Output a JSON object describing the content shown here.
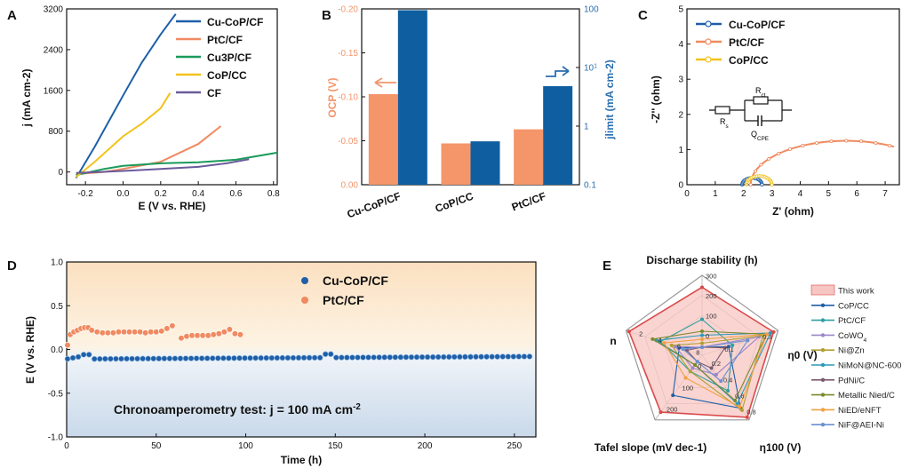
{
  "colors": {
    "cucop": "#1f5fa8",
    "ptc": "#f08a60",
    "cu3p": "#1a9a5a",
    "cop": "#f3c21a",
    "cf": "#6a5b9a",
    "barOrange": "#f4956a",
    "barBlue": "#0f5fa0",
    "orangeAxis": "#f4956a",
    "blueAxis": "#2a6fb0",
    "radarFill": "#f7c5c2",
    "radarStroke": "#d94a4a"
  },
  "chart_data": [
    {
      "panel": "A",
      "type": "line",
      "xlabel": "E (V vs. RHE)",
      "ylabel": "j (mA cm-2)",
      "xlim": [
        -0.3,
        0.82
      ],
      "ylim": [
        -250,
        3200
      ],
      "xticks": [
        "-0.2",
        "0.0",
        "0.2",
        "0.4",
        "0.6",
        "0.8"
      ],
      "xtickValues": [
        -0.2,
        0.0,
        0.2,
        0.4,
        0.6,
        0.8
      ],
      "yticks": [
        "0",
        "800",
        "1600",
        "2400",
        "3200"
      ],
      "ytickValues": [
        0,
        800,
        1600,
        2400,
        3200
      ],
      "legend": [
        "Cu-CoP/CF",
        "PtC/CF",
        "Cu3P/CF",
        "CoP/CC",
        "CF"
      ],
      "series": [
        {
          "name": "Cu-CoP/CF",
          "color": "cucop",
          "x": [
            -0.25,
            -0.15,
            0.0,
            0.1,
            0.2,
            0.28
          ],
          "y": [
            -120,
            500,
            1500,
            2150,
            2700,
            3100
          ]
        },
        {
          "name": "PtC/CF",
          "color": "ptc",
          "x": [
            -0.25,
            -0.1,
            0.0,
            0.2,
            0.4,
            0.52
          ],
          "y": [
            -40,
            0,
            60,
            200,
            550,
            900
          ]
        },
        {
          "name": "Cu3P/CF",
          "color": "cu3p",
          "x": [
            -0.25,
            -0.1,
            0.0,
            0.2,
            0.4,
            0.6,
            0.82
          ],
          "y": [
            -60,
            60,
            120,
            170,
            190,
            240,
            380
          ]
        },
        {
          "name": "CoP/CC",
          "color": "cop",
          "x": [
            -0.25,
            -0.15,
            0.0,
            0.1,
            0.2,
            0.25
          ],
          "y": [
            -100,
            200,
            700,
            950,
            1250,
            1550
          ]
        },
        {
          "name": "CF",
          "color": "cf",
          "x": [
            -0.25,
            0.0,
            0.2,
            0.4,
            0.55,
            0.67
          ],
          "y": [
            -20,
            20,
            60,
            100,
            170,
            250
          ]
        }
      ]
    },
    {
      "panel": "B",
      "type": "bar",
      "categories": [
        "Cu-CoP/CF",
        "CoP/CC",
        "PtC/CF"
      ],
      "ylabelLeft": "OCP (V)",
      "ylabelRight": "jlimit (mA cm-2)",
      "ylimLeft": [
        0,
        -0.2
      ],
      "yticksLeft": [
        "0.00",
        "-0.05",
        "-0.10",
        "-0.15",
        "-0.20"
      ],
      "ytickValuesLeft": [
        0,
        -0.05,
        -0.1,
        -0.15,
        -0.2
      ],
      "ylimRight": [
        0.1,
        100
      ],
      "yticksRight": [
        "0.1",
        "1",
        "10",
        "100"
      ],
      "ytickValuesRight": [
        0.1,
        1,
        10,
        100
      ],
      "series": [
        {
          "name": "OCP",
          "axis": "left",
          "color": "barOrange",
          "values": [
            -0.103,
            -0.047,
            -0.063
          ]
        },
        {
          "name": "jlimit",
          "axis": "right",
          "color": "barBlue",
          "values": [
            95,
            0.55,
            4.8
          ]
        }
      ]
    },
    {
      "panel": "C",
      "type": "line",
      "xlabel": "Z' (ohm)",
      "ylabel": "-Z'' (ohm)",
      "xlim": [
        0,
        7.5
      ],
      "ylim": [
        0,
        5
      ],
      "xticks": [
        "0",
        "1",
        "2",
        "3",
        "4",
        "5",
        "6",
        "7"
      ],
      "xtickValues": [
        0,
        1,
        2,
        3,
        4,
        5,
        6,
        7
      ],
      "yticks": [
        "0",
        "1",
        "2",
        "3",
        "4",
        "5"
      ],
      "ytickValues": [
        0,
        1,
        2,
        3,
        4,
        5
      ],
      "legend": [
        "Cu-CoP/CF",
        "PtC/CF",
        "CoP/CC"
      ],
      "circuit": {
        "rs": "Rs",
        "rct": "Rct",
        "cpe": "CPE",
        "q": "Q"
      },
      "series": [
        {
          "name": "Cu-CoP/CF",
          "color": "cucop",
          "arc": [
            1.95,
            2.65
          ]
        },
        {
          "name": "PtC/CF",
          "color": "ptc",
          "arc": [
            2.25,
            9.0
          ],
          "xmax": 7.42
        },
        {
          "name": "CoP/CC",
          "color": "cop",
          "arc": [
            2.1,
            3.0
          ]
        }
      ]
    },
    {
      "panel": "D",
      "type": "scatter",
      "xlabel": "Time (h)",
      "ylabel": "E (V vs. RHE)",
      "xlim": [
        0,
        262
      ],
      "ylim": [
        -1.0,
        1.0
      ],
      "xticks": [
        "0",
        "50",
        "100",
        "150",
        "200",
        "250"
      ],
      "xtickValues": [
        0,
        50,
        100,
        150,
        200,
        250
      ],
      "yticks": [
        "1.0",
        "0.5",
        "0.0",
        "-0.5",
        "-1.0"
      ],
      "ytickValues": [
        1.0,
        0.5,
        0.0,
        -0.5,
        -1.0
      ],
      "legend": [
        "Cu-CoP/CF",
        "PtC/CF"
      ],
      "annotation": "Chronoamperometry test:  j = 100 mA cm-2",
      "series": [
        {
          "name": "Cu-CoP/CF",
          "color": "cucop",
          "x": [
            0,
            262
          ],
          "y": [
            -0.11,
            -0.08
          ]
        },
        {
          "name": "PtC/CF",
          "color": "ptc",
          "x": [
            0.5,
            2,
            4,
            6,
            8,
            10,
            12,
            14,
            17,
            20,
            23,
            26,
            29,
            32,
            35,
            38,
            41,
            44,
            47,
            50,
            53,
            56,
            59,
            64,
            67,
            70,
            73,
            76,
            79,
            82,
            85,
            88,
            91,
            94,
            97
          ],
          "y": [
            0.05,
            0.17,
            0.2,
            0.22,
            0.24,
            0.25,
            0.25,
            0.22,
            0.2,
            0.19,
            0.19,
            0.19,
            0.2,
            0.2,
            0.2,
            0.2,
            0.2,
            0.19,
            0.2,
            0.2,
            0.21,
            0.24,
            0.27,
            0.13,
            0.15,
            0.16,
            0.16,
            0.16,
            0.16,
            0.17,
            0.18,
            0.2,
            0.23,
            0.18,
            0.17
          ]
        }
      ]
    },
    {
      "panel": "E",
      "type": "radar",
      "axes": [
        "Discharge stability (h)",
        "η0 (V)",
        "η100 (V)",
        "Tafel slope (mV dec-1)",
        "n"
      ],
      "axisTicks": [
        [
          "0",
          "100",
          "200",
          "300"
        ],
        [
          "0.1",
          "0.3"
        ],
        [
          "0.2",
          "0.4",
          "0.6",
          "0.8"
        ],
        [
          "0",
          "100",
          "200"
        ],
        [
          "8",
          "6",
          "4",
          "2"
        ]
      ],
      "legend": [
        "This work",
        "CoP/CC",
        "PtC/CF",
        "CoWO4",
        "Ni@Zn",
        "NiMoN@NC-600",
        "PdNi/C",
        "Metallic Nied/C",
        "NiED/eNFT",
        "NiF@AEI-Ni"
      ],
      "legendColors": [
        "#f7c5c2",
        "#1f5fa8",
        "#2ba0a0",
        "#9b86c9",
        "#b0a030",
        "#2a9ab8",
        "#7a5a70",
        "#7a8a2a",
        "#f0a040",
        "#6a90d0"
      ],
      "series": [
        {
          "name": "This work",
          "values": [
            0.85,
            0.94,
            0.96,
            0.88,
            0.96
          ]
        },
        {
          "name": "CoP/CC",
          "values": [
            0.1,
            0.35,
            0.82,
            0.62,
            0.3
          ]
        },
        {
          "name": "PtC/CF",
          "values": [
            0.45,
            0.4,
            0.55,
            0.25,
            0.55
          ]
        },
        {
          "name": "CoWO4",
          "values": [
            0.1,
            0.75,
            0.3,
            0.2,
            0.35
          ]
        },
        {
          "name": "Ni@Zn",
          "values": [
            0.15,
            0.8,
            0.85,
            0.25,
            0.4
          ]
        },
        {
          "name": "NiMoN@NC-600",
          "values": [
            0.25,
            0.9,
            0.75,
            0.15,
            0.6
          ]
        },
        {
          "name": "PdNi/C",
          "values": [
            0.1,
            0.3,
            0.2,
            0.1,
            0.2
          ]
        },
        {
          "name": "Metallic Nied/C",
          "values": [
            0.3,
            0.85,
            0.7,
            0.15,
            0.65
          ]
        },
        {
          "name": "NiED/eNFT",
          "values": [
            0.2,
            0.85,
            0.8,
            0.35,
            0.5
          ]
        },
        {
          "name": "NiF@AEI-Ni",
          "values": [
            0.1,
            0.6,
            0.4,
            0.1,
            0.25
          ]
        }
      ]
    }
  ]
}
